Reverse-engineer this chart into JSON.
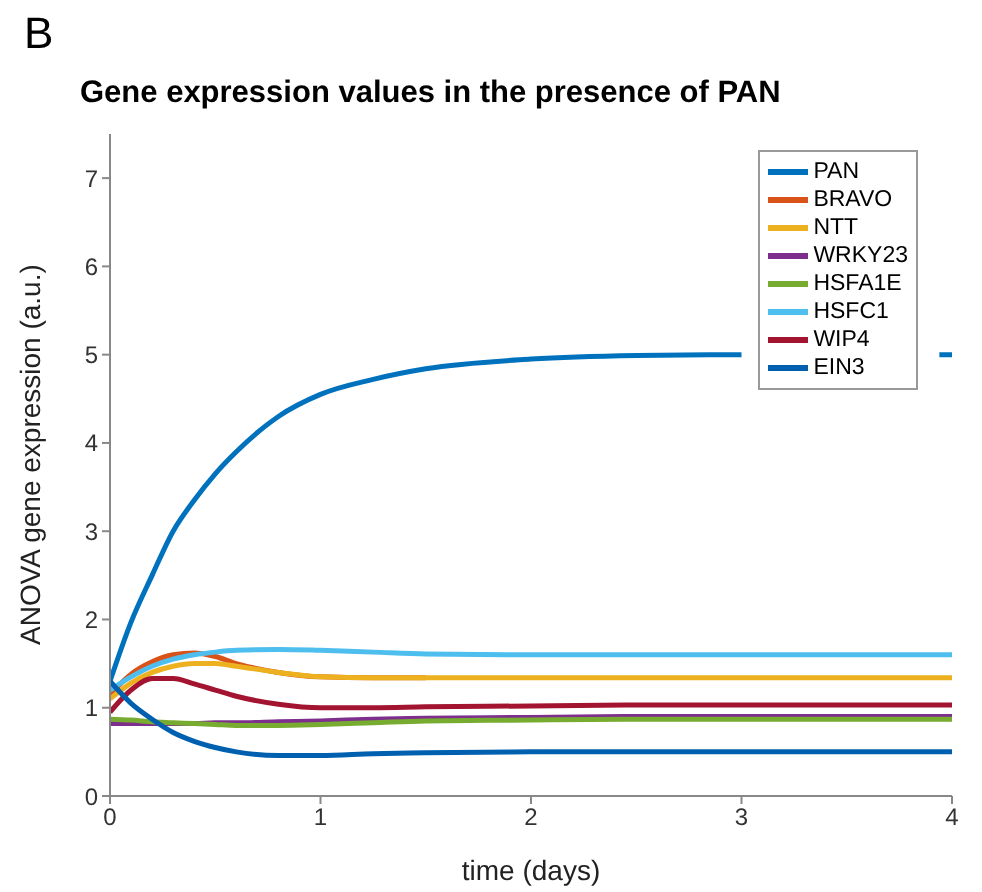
{
  "chart_data": {
    "type": "line",
    "title": "Gene expression values in the presence of PAN",
    "xlabel": "time (days)",
    "ylabel": "ANOVA gene expression (a.u.)",
    "annotations": [
      "B"
    ],
    "x": [
      0,
      0.1,
      0.2,
      0.3,
      0.4,
      0.5,
      0.6,
      0.8,
      1,
      1.25,
      1.5,
      2,
      2.5,
      3,
      3.5,
      3.94,
      4
    ],
    "series": [
      {
        "name": "PAN",
        "color": "#0072bd",
        "values": [
          1.3,
          1.97,
          2.5,
          3.0,
          3.35,
          3.65,
          3.9,
          4.3,
          4.55,
          4.72,
          4.84,
          4.95,
          4.99,
          5.0,
          null,
          5.0,
          5.0
        ]
      },
      {
        "name": "BRAVO",
        "color": "#d95319",
        "values": [
          1.15,
          1.38,
          1.52,
          1.6,
          1.62,
          1.58,
          1.5,
          1.4,
          1.35,
          1.34,
          1.34,
          null,
          null,
          null,
          null,
          null,
          null
        ]
      },
      {
        "name": "NTT",
        "color": "#edb120",
        "values": [
          1.1,
          1.28,
          1.4,
          1.47,
          1.5,
          1.5,
          1.47,
          1.4,
          1.35,
          1.34,
          1.34,
          1.34,
          1.34,
          1.34,
          1.34,
          1.34,
          1.34
        ]
      },
      {
        "name": "WRKY23",
        "color": "#7e2f8e",
        "values": [
          0.82,
          0.82,
          0.82,
          0.82,
          0.82,
          0.83,
          0.83,
          0.84,
          0.85,
          0.87,
          0.88,
          0.89,
          0.9,
          0.9,
          0.9,
          0.9,
          0.9
        ]
      },
      {
        "name": "HSFA1E",
        "color": "#77ac30",
        "values": [
          0.87,
          0.86,
          0.84,
          0.83,
          0.82,
          0.81,
          0.8,
          0.8,
          0.81,
          0.83,
          0.85,
          0.86,
          0.87,
          0.87,
          0.87,
          0.87,
          0.87
        ]
      },
      {
        "name": "HSFC1",
        "color": "#4dbeee",
        "values": [
          1.2,
          1.35,
          1.47,
          1.55,
          1.6,
          1.63,
          1.65,
          1.66,
          1.65,
          1.63,
          1.61,
          1.6,
          1.6,
          1.6,
          1.6,
          1.6,
          1.6
        ]
      },
      {
        "name": "WIP4",
        "color": "#a2142f",
        "values": [
          0.95,
          1.2,
          1.33,
          1.33,
          1.27,
          1.2,
          1.13,
          1.04,
          1.0,
          1.0,
          1.01,
          1.02,
          1.03,
          1.03,
          1.03,
          1.03,
          1.03
        ]
      },
      {
        "name": "EIN3",
        "color": "#0060b0",
        "values": [
          1.3,
          1.05,
          0.87,
          0.72,
          0.62,
          0.55,
          0.5,
          0.46,
          0.46,
          0.48,
          0.49,
          0.5,
          0.5,
          0.5,
          0.5,
          0.5,
          0.5
        ]
      }
    ],
    "xlim": [
      0,
      4
    ],
    "xticks": [
      0,
      1,
      2,
      3,
      4
    ],
    "ylim": [
      0,
      7.5
    ],
    "yticks": [
      0,
      1,
      2,
      3,
      4,
      5,
      6,
      7
    ],
    "grid": false,
    "legend": "top right",
    "marker": "none",
    "line_style": "solid"
  }
}
